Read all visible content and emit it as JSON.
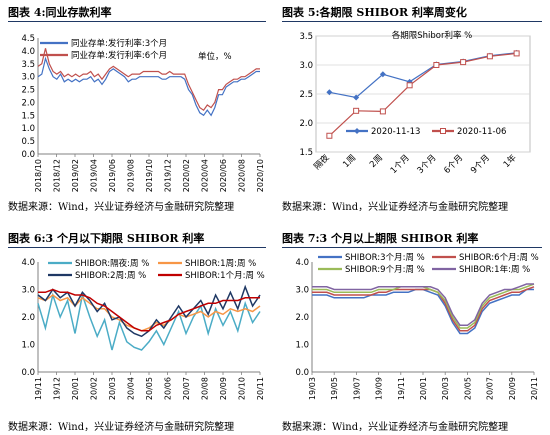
{
  "panels": [
    {
      "title": "图表 4:同业存款利率",
      "source": "数据来源：Wind，兴业证券经济与金融研究院整理"
    },
    {
      "title": "图表 5:各期限 SHIBOR 利率周变化",
      "source": "数据来源：Wind，兴业证券经济与金融研究院整理"
    },
    {
      "title": "图表 6:3 个月以下期限 SHIBOR 利率",
      "source": "数据来源：Wind，兴业证券经济与金融研究院整理"
    },
    {
      "title": "图表 7:3 个月以上期限 SHIBOR 利率",
      "source": "数据来源：Wind，兴业证券经济与金融研究院整理"
    }
  ],
  "chart_data": [
    {
      "type": "line",
      "title": "",
      "annotation": "单位，%",
      "x_ticks": [
        "2018/10",
        "2018/12",
        "2019/02",
        "2019/04",
        "2019/06",
        "2019/08",
        "2019/10",
        "2019/12",
        "2020/02",
        "2020/04",
        "2020/06",
        "2020/08",
        "2020/10"
      ],
      "ylim": [
        0,
        4.5
      ],
      "y_ticks": [
        "0.0",
        "0.5",
        "1.0",
        "1.5",
        "2.0",
        "2.5",
        "3.0",
        "3.5",
        "4.0",
        "4.5"
      ],
      "grid": false,
      "legend": "top-left",
      "colors": {
        "s1": "#4472c4",
        "s2": "#c0504d"
      },
      "series": [
        {
          "name": "同业存单:发行利率:3个月",
          "values": [
            3.0,
            3.1,
            3.7,
            3.3,
            3.0,
            2.9,
            3.1,
            2.8,
            2.9,
            2.8,
            2.9,
            2.8,
            2.9,
            2.9,
            3.0,
            2.8,
            2.9,
            2.7,
            2.9,
            3.2,
            3.3,
            3.2,
            3.1,
            3.0,
            2.8,
            2.9,
            2.9,
            3.0,
            3.0,
            3.0,
            3.0,
            3.0,
            3.0,
            2.9,
            2.9,
            3.0,
            3.0,
            3.0,
            3.0,
            2.9,
            2.5,
            2.3,
            1.9,
            1.6,
            1.5,
            1.7,
            1.5,
            1.8,
            2.3,
            2.3,
            2.6,
            2.7,
            2.8,
            2.8,
            2.9,
            2.9,
            3.0,
            3.1,
            3.2,
            3.2
          ]
        },
        {
          "name": "同业存单:发行利率:6个月",
          "values": [
            3.4,
            3.5,
            4.1,
            3.5,
            3.2,
            3.1,
            3.2,
            3.0,
            3.1,
            3.0,
            3.1,
            3.0,
            3.1,
            3.1,
            3.2,
            3.0,
            3.1,
            2.9,
            3.1,
            3.3,
            3.4,
            3.3,
            3.2,
            3.1,
            3.0,
            3.1,
            3.1,
            3.1,
            3.2,
            3.2,
            3.2,
            3.2,
            3.2,
            3.1,
            3.1,
            3.2,
            3.1,
            3.1,
            3.1,
            3.1,
            2.7,
            2.4,
            2.1,
            1.8,
            1.7,
            1.9,
            1.8,
            2.0,
            2.5,
            2.5,
            2.7,
            2.8,
            2.9,
            2.9,
            3.0,
            3.0,
            3.1,
            3.2,
            3.3,
            3.3
          ]
        }
      ]
    },
    {
      "type": "line",
      "title": "各期限Shibor利率 %",
      "categories": [
        "隔夜",
        "1周",
        "2周",
        "1个月",
        "3个月",
        "6个月",
        "9个月",
        "1年"
      ],
      "ylim": [
        1.5,
        3.5
      ],
      "y_ticks": [
        "1.5",
        "2.0",
        "2.5",
        "3.0",
        "3.5"
      ],
      "grid": true,
      "legend": "bottom",
      "colors": {
        "s1": "#4472c4",
        "s2": "#c0504d"
      },
      "series": [
        {
          "name": "2020-11-13",
          "values": [
            2.53,
            2.44,
            2.84,
            2.71,
            3.01,
            3.06,
            3.16,
            3.21
          ]
        },
        {
          "name": "2020-11-06",
          "values": [
            1.78,
            2.21,
            2.2,
            2.65,
            3.0,
            3.05,
            3.15,
            3.2
          ]
        }
      ]
    },
    {
      "type": "line",
      "title": "",
      "x_ticks": [
        "19/11",
        "19/12",
        "20/01",
        "20/02",
        "20/03",
        "20/04",
        "20/05",
        "20/06",
        "20/07",
        "20/08",
        "20/09",
        "20/10",
        "20/11"
      ],
      "ylim": [
        0,
        4.0
      ],
      "y_ticks": [
        "0.0",
        "1.0",
        "2.0",
        "3.0",
        "4.0"
      ],
      "grid": false,
      "legend": "top",
      "colors": {
        "s1": "#4bacc6",
        "s2": "#f79646",
        "s3": "#1f3864",
        "s4": "#c00000"
      },
      "series": [
        {
          "name": "SHIBOR:隔夜:周 %",
          "values": [
            2.5,
            1.6,
            2.8,
            2.0,
            2.6,
            1.4,
            2.8,
            2.0,
            1.3,
            1.9,
            0.8,
            1.8,
            1.1,
            0.9,
            0.8,
            1.1,
            1.5,
            1.0,
            1.6,
            2.2,
            1.4,
            2.0,
            2.4,
            1.4,
            2.3,
            1.7,
            2.2,
            1.5,
            2.5,
            1.8,
            2.2
          ]
        },
        {
          "name": "SHIBOR:1周:周 %",
          "values": [
            2.7,
            2.6,
            2.8,
            2.6,
            2.7,
            2.4,
            2.7,
            2.5,
            2.3,
            2.3,
            2.0,
            1.9,
            1.7,
            1.6,
            1.5,
            1.6,
            1.8,
            1.7,
            1.9,
            2.1,
            2.0,
            2.1,
            2.2,
            2.0,
            2.2,
            2.1,
            2.3,
            2.2,
            2.3,
            2.2,
            2.4
          ]
        },
        {
          "name": "SHIBOR:2周:周 %",
          "values": [
            2.8,
            2.6,
            3.0,
            2.7,
            2.9,
            2.4,
            2.9,
            2.6,
            2.2,
            2.5,
            1.9,
            2.0,
            1.6,
            1.4,
            1.3,
            1.5,
            1.9,
            1.6,
            2.0,
            2.4,
            2.0,
            2.3,
            2.6,
            2.1,
            2.8,
            2.3,
            2.9,
            2.3,
            3.1,
            2.4,
            2.8
          ]
        },
        {
          "name": "SHIBOR:1个月:周 %",
          "values": [
            2.9,
            2.9,
            3.0,
            2.9,
            2.9,
            2.8,
            2.8,
            2.7,
            2.5,
            2.4,
            2.2,
            2.0,
            1.8,
            1.6,
            1.5,
            1.5,
            1.7,
            1.8,
            1.9,
            2.1,
            2.2,
            2.3,
            2.4,
            2.5,
            2.5,
            2.6,
            2.6,
            2.6,
            2.7,
            2.7,
            2.7
          ]
        }
      ]
    },
    {
      "type": "line",
      "title": "",
      "x_ticks": [
        "19/03",
        "19/05",
        "19/07",
        "19/09",
        "19/11",
        "20/01",
        "20/03",
        "20/05",
        "20/07",
        "20/09",
        "20/11"
      ],
      "ylim": [
        0,
        4.0
      ],
      "y_ticks": [
        "0.0",
        "1.0",
        "2.0",
        "3.0",
        "4.0"
      ],
      "grid": false,
      "legend": "top",
      "colors": {
        "s1": "#4472c4",
        "s2": "#c0504d",
        "s3": "#9bbb59",
        "s4": "#8064a2"
      },
      "series": [
        {
          "name": "SHIBOR:3个月:周 %",
          "values": [
            2.8,
            2.8,
            2.8,
            2.7,
            2.7,
            2.7,
            2.7,
            2.7,
            2.8,
            2.8,
            2.8,
            2.9,
            2.9,
            2.9,
            3.0,
            3.0,
            2.9,
            2.8,
            2.4,
            1.8,
            1.4,
            1.4,
            1.6,
            2.2,
            2.5,
            2.6,
            2.7,
            2.8,
            2.8,
            3.0,
            3.0
          ]
        },
        {
          "name": "SHIBOR:6个月:周 %",
          "values": [
            2.9,
            2.9,
            2.9,
            2.8,
            2.8,
            2.8,
            2.8,
            2.8,
            2.8,
            2.9,
            2.9,
            3.0,
            3.0,
            3.0,
            3.0,
            3.0,
            3.0,
            2.9,
            2.5,
            1.9,
            1.5,
            1.5,
            1.7,
            2.3,
            2.6,
            2.7,
            2.8,
            2.9,
            2.9,
            3.0,
            3.1
          ]
        },
        {
          "name": "SHIBOR:9个月:周 %",
          "values": [
            3.0,
            3.0,
            3.0,
            2.9,
            2.9,
            2.9,
            2.9,
            2.9,
            2.9,
            3.0,
            3.0,
            3.0,
            3.1,
            3.1,
            3.1,
            3.1,
            3.0,
            2.9,
            2.6,
            2.0,
            1.6,
            1.6,
            1.8,
            2.4,
            2.7,
            2.8,
            2.9,
            3.0,
            3.0,
            3.1,
            3.2
          ]
        },
        {
          "name": "SHIBOR:1年:周 %",
          "values": [
            3.1,
            3.1,
            3.1,
            3.0,
            3.0,
            3.0,
            3.0,
            3.0,
            3.0,
            3.1,
            3.1,
            3.1,
            3.1,
            3.1,
            3.1,
            3.1,
            3.1,
            3.0,
            2.7,
            2.1,
            1.7,
            1.7,
            1.9,
            2.5,
            2.8,
            2.9,
            3.0,
            3.0,
            3.1,
            3.2,
            3.2
          ]
        }
      ]
    }
  ]
}
